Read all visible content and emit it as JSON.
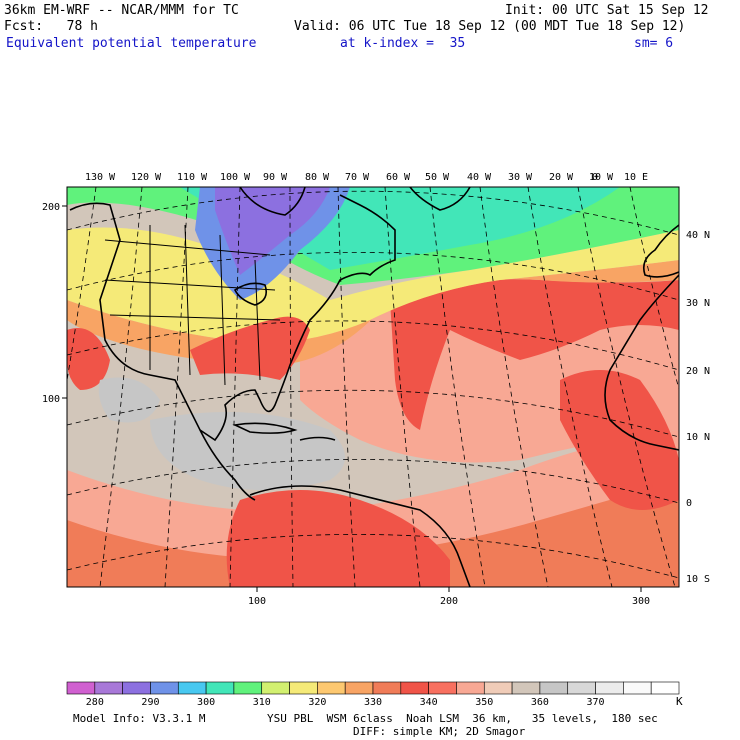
{
  "header": {
    "title": "36km EM-WRF -- NCAR/MMM for TC",
    "init": "Init: 00 UTC Sat 15 Sep 12",
    "fcst": "Fcst:   78 h",
    "valid": "Valid: 06 UTC Tue 18 Sep 12 (00 MDT Tue 18 Sep 12)",
    "field": "Equivalent potential temperature",
    "level": "at k-index =  35",
    "sm": "sm= 6"
  },
  "axes": {
    "lon_labels": [
      "130 W",
      "120 W",
      "110 W",
      "100 W",
      "90 W",
      "80 W",
      "70 W",
      "60 W",
      "50 W",
      "40 W",
      "30 W",
      "20 W",
      "10 W",
      "0",
      "10 E"
    ],
    "lat_labels": [
      "40 N",
      "30 N",
      "20 N",
      "10 N",
      "0",
      "10 S"
    ],
    "grid_x_labels": [
      "100",
      "200",
      "300"
    ],
    "grid_y_labels": [
      "200",
      "100"
    ]
  },
  "colorbar": {
    "colors": [
      "#d060d0",
      "#a878d8",
      "#8c70e0",
      "#6f92e8",
      "#48c8f0",
      "#42e6b8",
      "#60f27c",
      "#d2f070",
      "#f5ea78",
      "#fdc870",
      "#f8a464",
      "#f07c58",
      "#f05448",
      "#f87060",
      "#f8a894",
      "#f0ccb8",
      "#d2c6ba",
      "#c6c6c6",
      "#d8d8d8",
      "#ececec",
      "#fafafa",
      "#ffffff"
    ],
    "labels": [
      "280",
      "290",
      "300",
      "310",
      "320",
      "330",
      "340",
      "350",
      "360",
      "370"
    ],
    "unit": "K"
  },
  "footer": {
    "model_info": "Model Info: V3.3.1 M",
    "physics": "YSU PBL  WSM 6class  Noah LSM  36 km,   35 levels,  180 sec",
    "diff": "DIFF: simple KM; 2D Smagor"
  }
}
